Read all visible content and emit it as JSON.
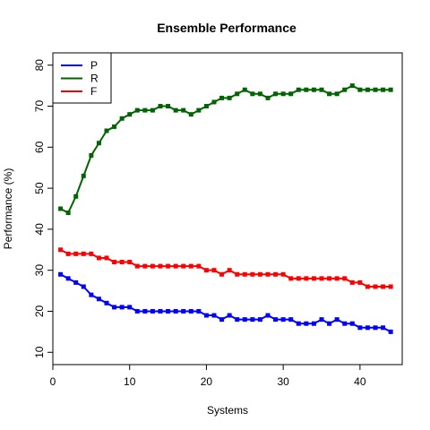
{
  "chart_data": {
    "type": "line",
    "title": "Ensemble Performance",
    "xlabel": "Systems",
    "ylabel": "Performance (%)",
    "xlim": [
      0,
      45.5
    ],
    "ylim": [
      7,
      83
    ],
    "xticks": [
      0,
      10,
      20,
      30,
      40
    ],
    "yticks": [
      10,
      20,
      30,
      40,
      50,
      60,
      70,
      80
    ],
    "grid": false,
    "legend_position": "top-left",
    "x": [
      1,
      2,
      3,
      4,
      5,
      6,
      7,
      8,
      9,
      10,
      11,
      12,
      13,
      14,
      15,
      16,
      17,
      18,
      19,
      20,
      21,
      22,
      23,
      24,
      25,
      26,
      27,
      28,
      29,
      30,
      31,
      32,
      33,
      34,
      35,
      36,
      37,
      38,
      39,
      40,
      41,
      42,
      43,
      44
    ],
    "series": [
      {
        "name": "P",
        "color": "#0000ff",
        "values": [
          29,
          28,
          27,
          26,
          24,
          23,
          22,
          21,
          21,
          21,
          20,
          20,
          20,
          20,
          20,
          20,
          20,
          20,
          20,
          19,
          19,
          18,
          19,
          18,
          18,
          18,
          18,
          19,
          18,
          18,
          18,
          17,
          17,
          17,
          18,
          17,
          18,
          17,
          17,
          16,
          16,
          16,
          16,
          15
        ]
      },
      {
        "name": "R",
        "color": "#006400",
        "values": [
          45,
          44,
          48,
          53,
          58,
          61,
          64,
          65,
          67,
          68,
          69,
          69,
          69,
          70,
          70,
          69,
          69,
          68,
          69,
          70,
          71,
          72,
          72,
          73,
          74,
          73,
          73,
          72,
          73,
          73,
          73,
          74,
          74,
          74,
          74,
          73,
          73,
          74,
          75,
          74,
          74,
          74,
          74,
          74
        ]
      },
      {
        "name": "F",
        "color": "#ff0000",
        "values": [
          35,
          34,
          34,
          34,
          34,
          33,
          33,
          32,
          32,
          32,
          31,
          31,
          31,
          31,
          31,
          31,
          31,
          31,
          31,
          30,
          30,
          29,
          30,
          29,
          29,
          29,
          29,
          29,
          29,
          29,
          28,
          28,
          28,
          28,
          28,
          28,
          28,
          28,
          27,
          27,
          26,
          26,
          26,
          26
        ]
      }
    ]
  }
}
